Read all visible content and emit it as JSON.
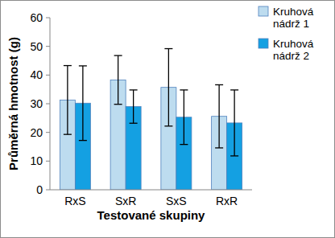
{
  "chart_data": {
    "type": "bar",
    "x_label": "Testované skupiny",
    "y_label": "Průměrná hmotnost (g)",
    "categories": [
      "RxS",
      "SxR",
      "SxS",
      "RxR"
    ],
    "series": [
      {
        "name": "Kruhová nádrž 1",
        "color": "#bddcef",
        "values": [
          31.3,
          38.3,
          35.7,
          25.6
        ],
        "errors": [
          12,
          8.5,
          13.5,
          11
        ]
      },
      {
        "name": "Kruhová nádrž 2",
        "color": "#14a0e2",
        "values": [
          30.2,
          29,
          25.3,
          23.3
        ],
        "errors": [
          13,
          5.8,
          9.5,
          11.5
        ]
      }
    ],
    "ylim": [
      0,
      60
    ],
    "yticks": [
      0,
      10,
      20,
      30,
      40,
      50,
      60
    ],
    "grid": false,
    "legend": "right"
  }
}
